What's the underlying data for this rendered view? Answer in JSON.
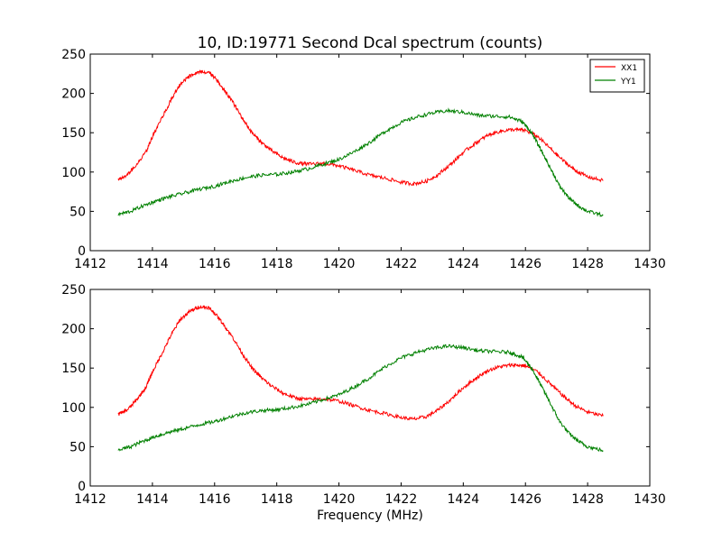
{
  "figure": {
    "title": "10, ID:19771 Second Dcal spectrum (counts)",
    "xlabel": "Frequency (MHz)"
  },
  "chart_data": [
    {
      "type": "line",
      "title": "10, ID:19771 Second Dcal spectrum (counts)",
      "xlabel": "",
      "ylabel": "",
      "xlim": [
        1412,
        1430
      ],
      "ylim": [
        0,
        250
      ],
      "xticks": [
        1412,
        1414,
        1416,
        1418,
        1420,
        1422,
        1424,
        1426,
        1428,
        1430
      ],
      "yticks": [
        0,
        50,
        100,
        150,
        200,
        250
      ],
      "grid": false,
      "legend": "top-right",
      "series": [
        {
          "name": "XX1",
          "color": "#ff0000",
          "x": [
            1412.9,
            1413.2,
            1413.5,
            1413.8,
            1414.0,
            1414.3,
            1414.6,
            1414.9,
            1415.2,
            1415.5,
            1415.8,
            1416.0,
            1416.3,
            1416.6,
            1416.9,
            1417.2,
            1417.5,
            1417.8,
            1418.2,
            1418.6,
            1419.0,
            1419.5,
            1420.0,
            1420.5,
            1421.0,
            1421.5,
            1422.0,
            1422.4,
            1422.8,
            1423.2,
            1423.6,
            1424.0,
            1424.4,
            1424.8,
            1425.2,
            1425.6,
            1426.0,
            1426.4,
            1426.8,
            1427.2,
            1427.6,
            1428.0,
            1428.5
          ],
          "values": [
            91,
            97,
            110,
            126,
            145,
            168,
            192,
            212,
            222,
            228,
            227,
            220,
            205,
            188,
            168,
            150,
            138,
            128,
            118,
            112,
            110,
            111,
            108,
            102,
            96,
            92,
            87,
            85,
            88,
            97,
            110,
            125,
            137,
            147,
            152,
            154,
            153,
            145,
            130,
            115,
            102,
            94,
            89
          ]
        },
        {
          "name": "YY1",
          "color": "#008000",
          "x": [
            1412.9,
            1413.3,
            1413.7,
            1414.1,
            1414.5,
            1415.0,
            1415.5,
            1416.0,
            1416.5,
            1417.0,
            1417.5,
            1418.0,
            1418.5,
            1419.0,
            1419.5,
            1420.0,
            1420.5,
            1421.0,
            1421.5,
            1422.0,
            1422.5,
            1423.0,
            1423.5,
            1424.0,
            1424.5,
            1425.0,
            1425.5,
            1425.9,
            1426.2,
            1426.5,
            1426.8,
            1427.1,
            1427.4,
            1427.7,
            1428.0,
            1428.5
          ],
          "values": [
            46,
            50,
            57,
            63,
            68,
            73,
            78,
            82,
            88,
            93,
            96,
            97,
            100,
            104,
            110,
            116,
            126,
            138,
            152,
            163,
            170,
            175,
            178,
            176,
            172,
            171,
            170,
            164,
            150,
            128,
            105,
            82,
            67,
            57,
            50,
            45
          ]
        }
      ]
    },
    {
      "type": "line",
      "title": "",
      "xlabel": "Frequency (MHz)",
      "ylabel": "",
      "xlim": [
        1412,
        1430
      ],
      "ylim": [
        0,
        250
      ],
      "xticks": [
        1412,
        1414,
        1416,
        1418,
        1420,
        1422,
        1424,
        1426,
        1428,
        1430
      ],
      "yticks": [
        0,
        50,
        100,
        150,
        200,
        250
      ],
      "grid": false,
      "legend": "",
      "series": [
        {
          "color": "#ff0000",
          "x": [
            1412.9,
            1413.2,
            1413.5,
            1413.8,
            1414.0,
            1414.3,
            1414.6,
            1414.9,
            1415.2,
            1415.5,
            1415.8,
            1416.0,
            1416.3,
            1416.6,
            1416.9,
            1417.2,
            1417.5,
            1417.8,
            1418.2,
            1418.6,
            1419.0,
            1419.5,
            1420.0,
            1420.5,
            1421.0,
            1421.5,
            1422.0,
            1422.4,
            1422.8,
            1423.2,
            1423.6,
            1424.0,
            1424.4,
            1424.8,
            1425.2,
            1425.6,
            1426.0,
            1426.4,
            1426.8,
            1427.2,
            1427.6,
            1428.0,
            1428.5
          ],
          "values": [
            91,
            97,
            110,
            126,
            145,
            168,
            192,
            212,
            222,
            228,
            227,
            220,
            205,
            188,
            168,
            150,
            138,
            128,
            118,
            112,
            110,
            111,
            108,
            102,
            96,
            92,
            87,
            85,
            88,
            97,
            110,
            125,
            137,
            147,
            152,
            154,
            153,
            145,
            130,
            115,
            102,
            94,
            89
          ]
        },
        {
          "color": "#008000",
          "x": [
            1412.9,
            1413.3,
            1413.7,
            1414.1,
            1414.5,
            1415.0,
            1415.5,
            1416.0,
            1416.5,
            1417.0,
            1417.5,
            1418.0,
            1418.5,
            1419.0,
            1419.5,
            1420.0,
            1420.5,
            1421.0,
            1421.5,
            1422.0,
            1422.5,
            1423.0,
            1423.5,
            1424.0,
            1424.5,
            1425.0,
            1425.5,
            1425.9,
            1426.2,
            1426.5,
            1426.8,
            1427.1,
            1427.4,
            1427.7,
            1428.0,
            1428.5
          ],
          "values": [
            46,
            50,
            57,
            63,
            68,
            73,
            78,
            82,
            88,
            93,
            96,
            97,
            100,
            104,
            110,
            116,
            126,
            138,
            152,
            163,
            170,
            175,
            178,
            176,
            172,
            171,
            170,
            164,
            150,
            128,
            105,
            82,
            67,
            57,
            50,
            45
          ]
        }
      ]
    }
  ]
}
